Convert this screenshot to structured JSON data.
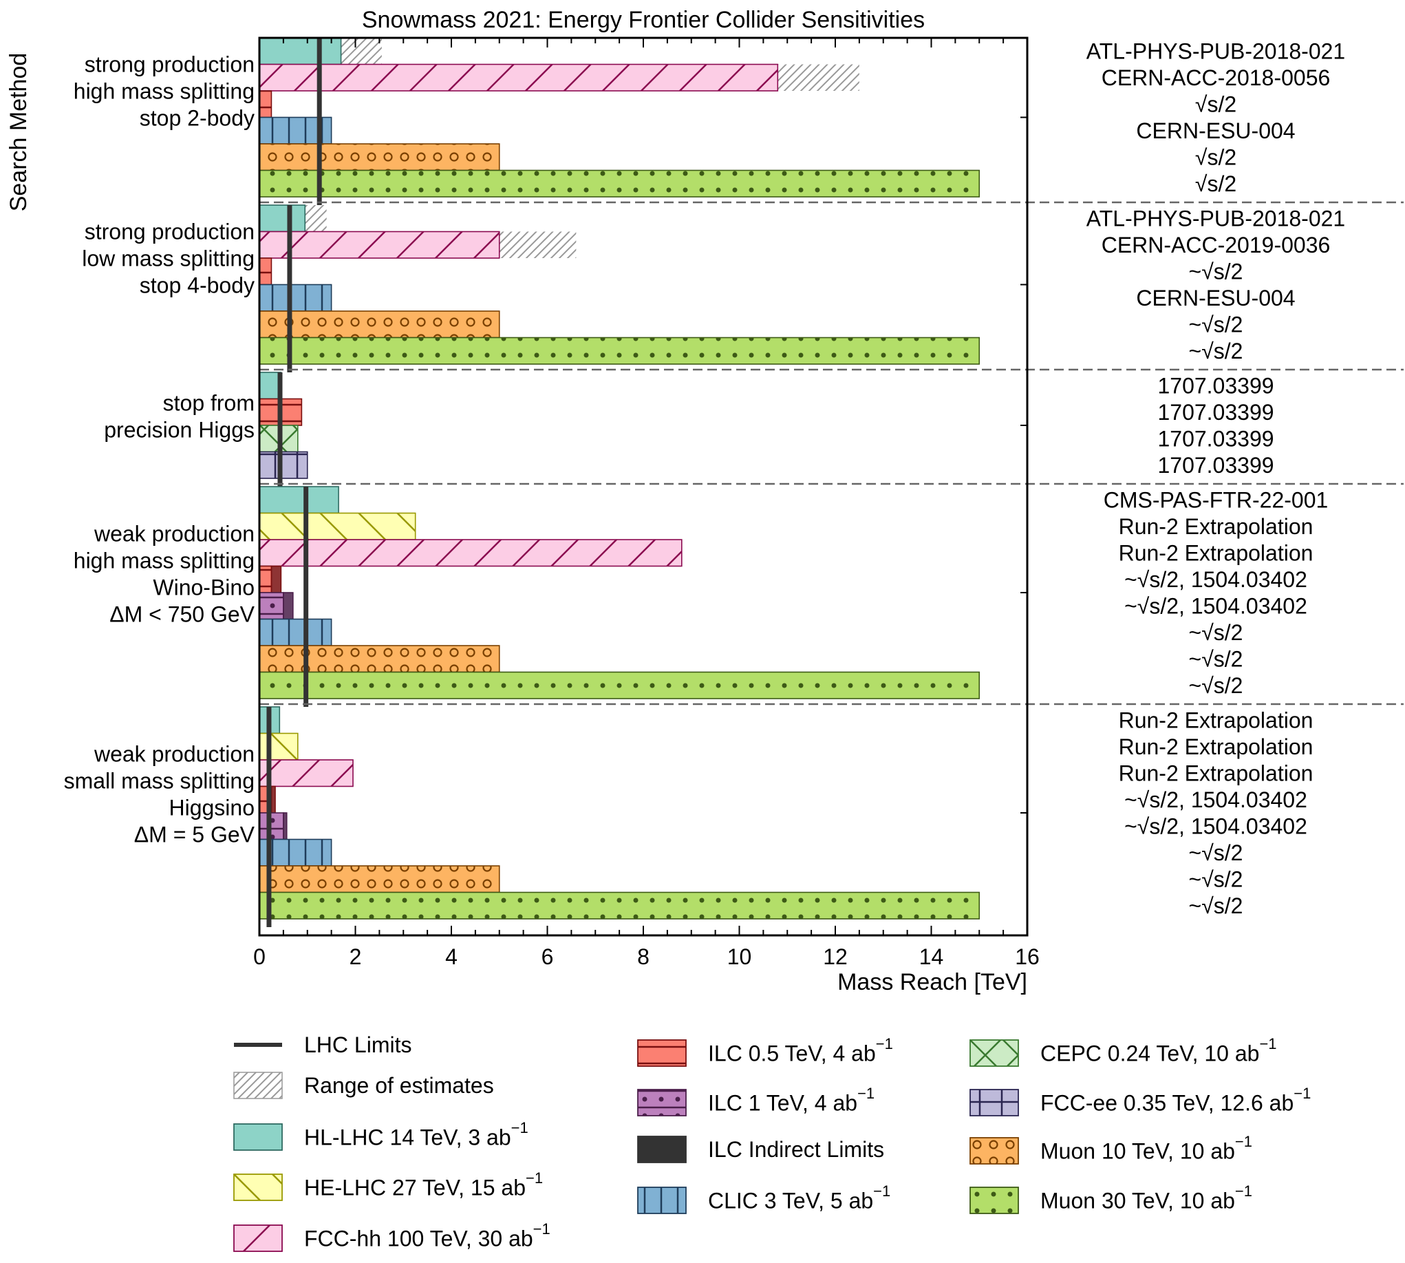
{
  "chart_data": {
    "type": "bar",
    "orientation": "horizontal",
    "title": "Snowmass 2021: Energy Frontier Collider Sensitivities",
    "xlabel": "Mass Reach [TeV]",
    "ylabel": "Search Method",
    "xlim": [
      0,
      16
    ],
    "xticks": [
      "0",
      "2",
      "4",
      "6",
      "8",
      "10",
      "12",
      "14",
      "16"
    ],
    "grid": false,
    "legend_position": "bottom",
    "colliders": {
      "hllhc": {
        "label": "HL-LHC 14 TeV, 3 ab",
        "sup": "−1",
        "fill": "#8dd3c7",
        "edge": "#2f6b62",
        "hatch": "none"
      },
      "helhc": {
        "label": "HE-LHC 27 TeV, 15 ab",
        "sup": "−1",
        "fill": "#ffffb3",
        "edge": "#999900",
        "hatch": "backslash"
      },
      "fcchh": {
        "label": "FCC-hh 100 TeV, 30 ab",
        "sup": "−1",
        "fill": "#fccde5",
        "edge": "#8b0a50",
        "hatch": "slash"
      },
      "ilc05": {
        "label": "ILC 0.5 TeV, 4 ab",
        "sup": "−1",
        "fill": "#fb8072",
        "edge": "#7a1010",
        "hatch": "horizontal"
      },
      "ilc1": {
        "label": "ILC 1 TeV, 4 ab",
        "sup": "−1",
        "fill": "#bc80bd",
        "edge": "#4a1e4a",
        "hatch": "horizontal-dots"
      },
      "ilcind": {
        "label": "ILC Indirect Limits",
        "sup": "",
        "fill": "#333333",
        "edge": "#333333",
        "hatch": "none"
      },
      "clic": {
        "label": "CLIC 3 TeV, 5 ab",
        "sup": "−1",
        "fill": "#80b1d3",
        "edge": "#1f3d5a",
        "hatch": "vertical"
      },
      "cepc": {
        "label": "CEPC 0.24 TeV, 10 ab",
        "sup": "−1",
        "fill": "#ccebc5",
        "edge": "#3a7a30",
        "hatch": "cross"
      },
      "fccee": {
        "label": "FCC-ee 0.35 TeV, 12.6 ab",
        "sup": "−1",
        "fill": "#bebada",
        "edge": "#2a2550",
        "hatch": "grid"
      },
      "muon10": {
        "label": "Muon 10 TeV, 10 ab",
        "sup": "−1",
        "fill": "#fdb462",
        "edge": "#7a4000",
        "hatch": "circles"
      },
      "muon30": {
        "label": "Muon 30 TeV, 10 ab",
        "sup": "−1",
        "fill": "#b3de69",
        "edge": "#3d5a16",
        "hatch": "dots"
      }
    },
    "legend": {
      "lhc_limits": "LHC Limits",
      "range": "Range of estimates",
      "columns": [
        [
          "lhc",
          "range",
          "hllhc",
          "helhc",
          "fcchh"
        ],
        [
          "ilc05",
          "ilc1",
          "ilcind",
          "clic"
        ],
        [
          "cepc",
          "fccee",
          "muon10",
          "muon30"
        ]
      ]
    },
    "groups": [
      {
        "label": [
          "strong production",
          "high mass splitting",
          "stop 2-body"
        ],
        "lhc_limit": 1.25,
        "bars": [
          {
            "collider": "hllhc",
            "value": 1.7,
            "range_to": 2.55,
            "ref": "ATL-PHYS-PUB-2018-021"
          },
          {
            "collider": "fcchh",
            "value": 10.8,
            "range_to": 12.5,
            "ref": "CERN-ACC-2018-0056"
          },
          {
            "collider": "ilc05",
            "value": 0.25,
            "ref": "√s/2"
          },
          {
            "collider": "clic",
            "value": 1.5,
            "ref": "CERN-ESU-004"
          },
          {
            "collider": "muon10",
            "value": 5.0,
            "ref": "√s/2"
          },
          {
            "collider": "muon30",
            "value": 15.0,
            "ref": "√s/2"
          }
        ]
      },
      {
        "label": [
          "strong production",
          "low mass splitting",
          "stop 4-body"
        ],
        "lhc_limit": 0.63,
        "bars": [
          {
            "collider": "hllhc",
            "value": 0.95,
            "range_to": 1.4,
            "ref": "ATL-PHYS-PUB-2018-021"
          },
          {
            "collider": "fcchh",
            "value": 5.0,
            "range_to": 6.6,
            "ref": "CERN-ACC-2019-0036"
          },
          {
            "collider": "ilc05",
            "value": 0.25,
            "ref": "~√s/2"
          },
          {
            "collider": "clic",
            "value": 1.5,
            "ref": "CERN-ESU-004"
          },
          {
            "collider": "muon10",
            "value": 5.0,
            "ref": "~√s/2"
          },
          {
            "collider": "muon30",
            "value": 15.0,
            "ref": "~√s/2"
          }
        ]
      },
      {
        "label": [
          "stop from",
          "precision Higgs"
        ],
        "lhc_limit": 0.43,
        "bars": [
          {
            "collider": "hllhc",
            "value": 0.45,
            "ref": "1707.03399"
          },
          {
            "collider": "ilc05",
            "value": 0.88,
            "ref": "1707.03399"
          },
          {
            "collider": "cepc",
            "value": 0.8,
            "ref": "1707.03399"
          },
          {
            "collider": "fccee",
            "value": 1.0,
            "ref": "1707.03399"
          }
        ]
      },
      {
        "label": [
          "weak production",
          "high mass splitting",
          "Wino-Bino",
          "ΔM < 750 GeV"
        ],
        "lhc_limit": 0.97,
        "bars": [
          {
            "collider": "hllhc",
            "value": 1.65,
            "ref": "CMS-PAS-FTR-22-001"
          },
          {
            "collider": "helhc",
            "value": 3.25,
            "ref": "Run-2 Extrapolation"
          },
          {
            "collider": "fcchh",
            "value": 8.8,
            "ref": "Run-2 Extrapolation"
          },
          {
            "collider": "ilc05",
            "value": 0.25,
            "indirect_to": 0.45,
            "ref": "~√s/2, 1504.03402"
          },
          {
            "collider": "ilc1",
            "value": 0.5,
            "indirect_to": 0.7,
            "ref": "~√s/2, 1504.03402"
          },
          {
            "collider": "clic",
            "value": 1.5,
            "ref": "~√s/2"
          },
          {
            "collider": "muon10",
            "value": 5.0,
            "ref": "~√s/2"
          },
          {
            "collider": "muon30",
            "value": 15.0,
            "ref": "~√s/2"
          }
        ]
      },
      {
        "label": [
          "weak production",
          "small mass splitting",
          "Higgsino",
          "ΔM = 5 GeV"
        ],
        "lhc_limit": 0.2,
        "bars": [
          {
            "collider": "hllhc",
            "value": 0.42,
            "ref": "Run-2 Extrapolation"
          },
          {
            "collider": "helhc",
            "value": 0.8,
            "ref": "Run-2 Extrapolation"
          },
          {
            "collider": "fcchh",
            "value": 1.95,
            "ref": "Run-2 Extrapolation"
          },
          {
            "collider": "ilc05",
            "value": 0.25,
            "indirect_to": 0.33,
            "ref": "~√s/2, 1504.03402"
          },
          {
            "collider": "ilc1",
            "value": 0.5,
            "indirect_to": 0.57,
            "ref": "~√s/2, 1504.03402"
          },
          {
            "collider": "clic",
            "value": 1.5,
            "ref": "~√s/2"
          },
          {
            "collider": "muon10",
            "value": 5.0,
            "ref": "~√s/2"
          },
          {
            "collider": "muon30",
            "value": 15.0,
            "ref": "~√s/2"
          }
        ]
      }
    ]
  }
}
